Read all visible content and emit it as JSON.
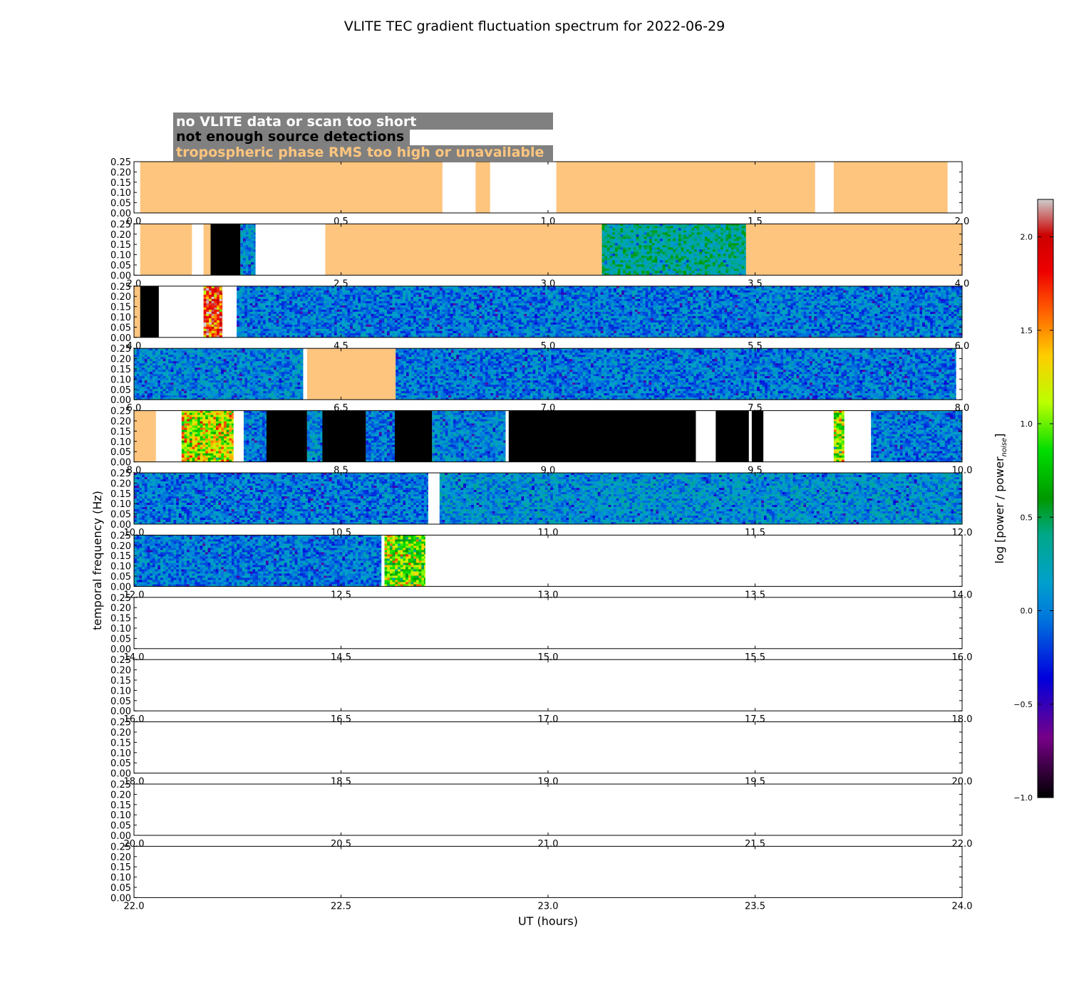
{
  "title": "VLITE TEC gradient fluctuation spectrum for 2022-06-29",
  "legend": {
    "items": [
      {
        "label": "no VLITE data or scan too short",
        "color": "#ffffff"
      },
      {
        "label": "not enough source detections",
        "color": "#000000"
      },
      {
        "label": "tropospheric phase RMS too high or unavailable",
        "color": "#fec57e"
      }
    ],
    "background": "#808080"
  },
  "colors": {
    "troposphere_flag": "#fec57e",
    "detection_flag": "#000000",
    "saturated": "#cccccc"
  },
  "chart_data": {
    "type": "heatmap",
    "title": "VLITE TEC gradient fluctuation spectrum for 2022-06-29",
    "xlabel": "UT (hours)",
    "ylabel": "temporal frequency (Hz)",
    "ylim": [
      0,
      0.25
    ],
    "yticks": [
      "0.00",
      "0.05",
      "0.10",
      "0.15",
      "0.20",
      "0.25"
    ],
    "colorbar": {
      "label": "log [power / power",
      "label_sub": "noise",
      "label_end": "]",
      "range": [
        -1.0,
        2.2
      ],
      "ticks": [
        "−1.0",
        "−0.5",
        "0.0",
        "0.5",
        "1.0",
        "1.5",
        "2.0"
      ],
      "colormap": "nipy_spectral"
    },
    "panels": [
      {
        "xlim": [
          0,
          2
        ],
        "xticks": [
          "0.0",
          "0.5",
          "1.0",
          "1.5",
          "2.0"
        ],
        "segments": [
          {
            "start": 0.015,
            "end": 0.745,
            "kind": "troposphere"
          },
          {
            "start": 0.825,
            "end": 0.86,
            "kind": "troposphere"
          },
          {
            "start": 1.02,
            "end": 1.645,
            "kind": "troposphere"
          },
          {
            "start": 1.69,
            "end": 1.965,
            "kind": "troposphere"
          }
        ]
      },
      {
        "xlim": [
          2,
          4
        ],
        "xticks": [
          "2.0",
          "2.5",
          "3.0",
          "3.5",
          "4.0"
        ],
        "segments": [
          {
            "start": 2.015,
            "end": 2.14,
            "kind": "troposphere"
          },
          {
            "start": 2.168,
            "end": 2.185,
            "kind": "troposphere"
          },
          {
            "start": 2.185,
            "end": 2.257,
            "kind": "no_detections"
          },
          {
            "start": 2.257,
            "end": 2.293,
            "kind": "spectrum",
            "level": 0.1
          },
          {
            "start": 2.462,
            "end": 3.13,
            "kind": "troposphere"
          },
          {
            "start": 3.13,
            "end": 3.478,
            "kind": "spectrum",
            "level": 0.35
          },
          {
            "start": 3.478,
            "end": 4.0,
            "kind": "troposphere"
          }
        ]
      },
      {
        "xlim": [
          4,
          6
        ],
        "xticks": [
          "4.0",
          "4.5",
          "5.0",
          "5.5",
          "6.0"
        ],
        "segments": [
          {
            "start": 4.0,
            "end": 4.015,
            "kind": "troposphere"
          },
          {
            "start": 4.015,
            "end": 4.06,
            "kind": "no_detections"
          },
          {
            "start": 4.168,
            "end": 4.213,
            "kind": "spectrum",
            "level": 1.8
          },
          {
            "start": 4.248,
            "end": 6.0,
            "kind": "spectrum",
            "level": 0.0
          }
        ]
      },
      {
        "xlim": [
          6,
          8
        ],
        "xticks": [
          "6.0",
          "6.5",
          "7.0",
          "7.5",
          "8.0"
        ],
        "segments": [
          {
            "start": 6.0,
            "end": 6.408,
            "kind": "spectrum",
            "level": 0.05
          },
          {
            "start": 6.418,
            "end": 6.632,
            "kind": "troposphere"
          },
          {
            "start": 6.632,
            "end": 7.985,
            "kind": "spectrum",
            "level": 0.0
          }
        ]
      },
      {
        "xlim": [
          8,
          10
        ],
        "xticks": [
          "8.0",
          "8.5",
          "9.0",
          "9.5",
          "10.0"
        ],
        "segments": [
          {
            "start": 8.0,
            "end": 8.053,
            "kind": "troposphere"
          },
          {
            "start": 8.115,
            "end": 8.24,
            "kind": "spectrum",
            "level": 1.2
          },
          {
            "start": 8.265,
            "end": 8.32,
            "kind": "spectrum",
            "level": 0.0
          },
          {
            "start": 8.32,
            "end": 8.418,
            "kind": "no_detections"
          },
          {
            "start": 8.418,
            "end": 8.455,
            "kind": "spectrum",
            "level": 0.1
          },
          {
            "start": 8.455,
            "end": 8.56,
            "kind": "no_detections"
          },
          {
            "start": 8.56,
            "end": 8.63,
            "kind": "spectrum",
            "level": 0.0
          },
          {
            "start": 8.63,
            "end": 8.72,
            "kind": "no_detections"
          },
          {
            "start": 8.72,
            "end": 8.897,
            "kind": "spectrum",
            "level": 0.05
          },
          {
            "start": 8.905,
            "end": 9.357,
            "kind": "no_detections"
          },
          {
            "start": 9.405,
            "end": 9.485,
            "kind": "no_detections"
          },
          {
            "start": 9.492,
            "end": 9.52,
            "kind": "no_detections"
          },
          {
            "start": 9.69,
            "end": 9.715,
            "kind": "spectrum",
            "level": 1.0
          },
          {
            "start": 9.78,
            "end": 10.0,
            "kind": "spectrum",
            "level": 0.0
          }
        ]
      },
      {
        "xlim": [
          10,
          12
        ],
        "xticks": [
          "10.0",
          "10.5",
          "11.0",
          "11.5",
          "12.0"
        ],
        "segments": [
          {
            "start": 10.0,
            "end": 10.71,
            "kind": "spectrum",
            "level": 0.0
          },
          {
            "start": 10.738,
            "end": 12.0,
            "kind": "spectrum",
            "level": 0.1
          }
        ]
      },
      {
        "xlim": [
          12,
          14
        ],
        "xticks": [
          "12.0",
          "12.5",
          "13.0",
          "13.5",
          "14.0"
        ],
        "segments": [
          {
            "start": 12.0,
            "end": 12.597,
            "kind": "spectrum",
            "level": 0.0
          },
          {
            "start": 12.605,
            "end": 12.703,
            "kind": "spectrum",
            "level": 1.0
          }
        ]
      },
      {
        "xlim": [
          14,
          16
        ],
        "xticks": [
          "14.0",
          "14.5",
          "15.0",
          "15.5",
          "16.0"
        ],
        "segments": []
      },
      {
        "xlim": [
          16,
          18
        ],
        "xticks": [
          "16.0",
          "16.5",
          "17.0",
          "17.5",
          "18.0"
        ],
        "segments": []
      },
      {
        "xlim": [
          18,
          20
        ],
        "xticks": [
          "18.0",
          "18.5",
          "19.0",
          "19.5",
          "20.0"
        ],
        "segments": []
      },
      {
        "xlim": [
          20,
          22
        ],
        "xticks": [
          "20.0",
          "20.5",
          "21.0",
          "21.5",
          "22.0"
        ],
        "segments": []
      },
      {
        "xlim": [
          22,
          24
        ],
        "xticks": [
          "22.0",
          "22.5",
          "23.0",
          "23.5",
          "24.0"
        ],
        "segments": []
      }
    ]
  }
}
